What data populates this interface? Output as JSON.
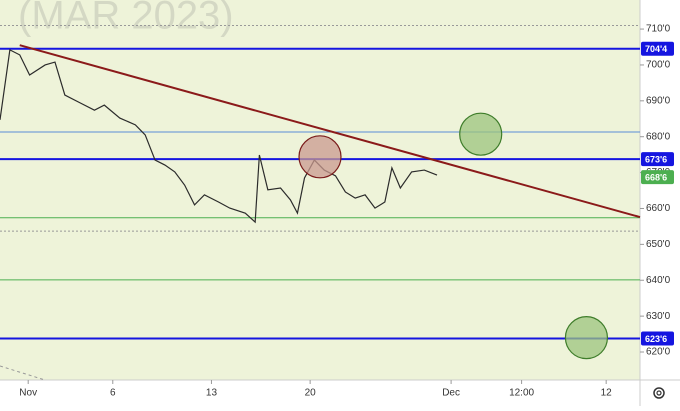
{
  "chart_data": {
    "type": "line",
    "title": "(MAR 2023)",
    "x": [
      -2.0,
      -1.3,
      -0.6,
      0.1,
      1.2,
      1.9,
      2.6,
      3.7,
      4.7,
      5.4,
      6.5,
      7.6,
      8.3,
      9.0,
      9.7,
      10.4,
      11.1,
      11.8,
      12.5,
      13.5,
      14.3,
      15.4,
      16.1,
      16.4,
      17.0,
      17.9,
      18.6,
      19.1,
      19.6,
      20.3,
      21.0,
      21.8,
      22.5,
      23.2,
      23.9,
      24.6,
      25.3,
      25.8,
      26.4,
      27.2,
      28.1,
      29.0
    ],
    "series": [
      {
        "color": "#2b2b2b",
        "values": [
          684.7,
          704.2,
          702.8,
          697.2,
          700.0,
          700.8,
          691.6,
          689.4,
          687.4,
          688.8,
          685.2,
          683.3,
          680.5,
          673.5,
          672.1,
          670.2,
          666.5,
          661.0,
          663.8,
          661.8,
          660.1,
          658.7,
          656.2,
          674.9,
          665.2,
          665.7,
          662.4,
          658.7,
          668.5,
          673.5,
          670.7,
          669.1,
          664.6,
          662.9,
          663.8,
          660.1,
          661.8,
          671.3,
          665.7,
          670.2,
          670.7,
          669.3
        ]
      }
    ],
    "xlim": [
      -2,
      43.4
    ],
    "ylim": [
      612.2,
      718.1
    ],
    "xticks": [
      {
        "value": 0,
        "label": "Nov"
      },
      6,
      13,
      20,
      {
        "value": 30,
        "label": "Dec"
      },
      {
        "value": 35,
        "label": "12:00"
      },
      {
        "value": 41,
        "label": "12"
      }
    ],
    "yticks": [
      {
        "value": 710,
        "label": "710'0"
      },
      {
        "value": 700,
        "label": "700'0"
      },
      {
        "value": 690,
        "label": "690'0"
      },
      {
        "value": 680,
        "label": "680'0"
      },
      {
        "value": 670,
        "label": "670'0"
      },
      {
        "value": 660,
        "label": "660'0"
      },
      {
        "value": 650,
        "label": "650'0"
      },
      {
        "value": 640,
        "label": "640'0"
      },
      {
        "value": 630,
        "label": "630'0"
      },
      {
        "value": 620,
        "label": "620'0"
      }
    ],
    "levels": [
      {
        "value": 704.5,
        "label": "704'4",
        "color": "#1515e0",
        "width": 2
      },
      {
        "value": 673.75,
        "label": "673'6",
        "color": "#1515e0",
        "width": 2
      },
      {
        "value": 623.75,
        "label": "623'6",
        "color": "#1515e0",
        "width": 2
      },
      {
        "value": 681.3,
        "color": "#5b8dd6",
        "width": 1
      },
      {
        "value": 657.4,
        "color": "#4caf50",
        "width": 1
      },
      {
        "value": 640.1,
        "color": "#4caf50",
        "width": 1
      },
      {
        "value": 711,
        "color": "#999999",
        "width": 1,
        "dash": true
      },
      {
        "value": 653.7,
        "color": "#999999",
        "width": 1,
        "dash": true
      }
    ],
    "last_price": {
      "value": 668.75,
      "label": "668'6",
      "color": "#4caf50"
    },
    "trendline": {
      "x": [
        -0.6,
        43.4
      ],
      "values": [
        705.5,
        657.6
      ],
      "color": "#8b1a1a"
    },
    "circles": [
      {
        "x": 32.1,
        "y": 680.7,
        "color": "#9cc47e",
        "stroke": "#3e7d2a"
      },
      {
        "x": 20.7,
        "y": 674.4,
        "color": "#c99a8f",
        "stroke": "#7a1b1b"
      },
      {
        "x": 39.6,
        "y": 624,
        "color": "#9cc47e",
        "stroke": "#3e7d2a"
      }
    ]
  }
}
